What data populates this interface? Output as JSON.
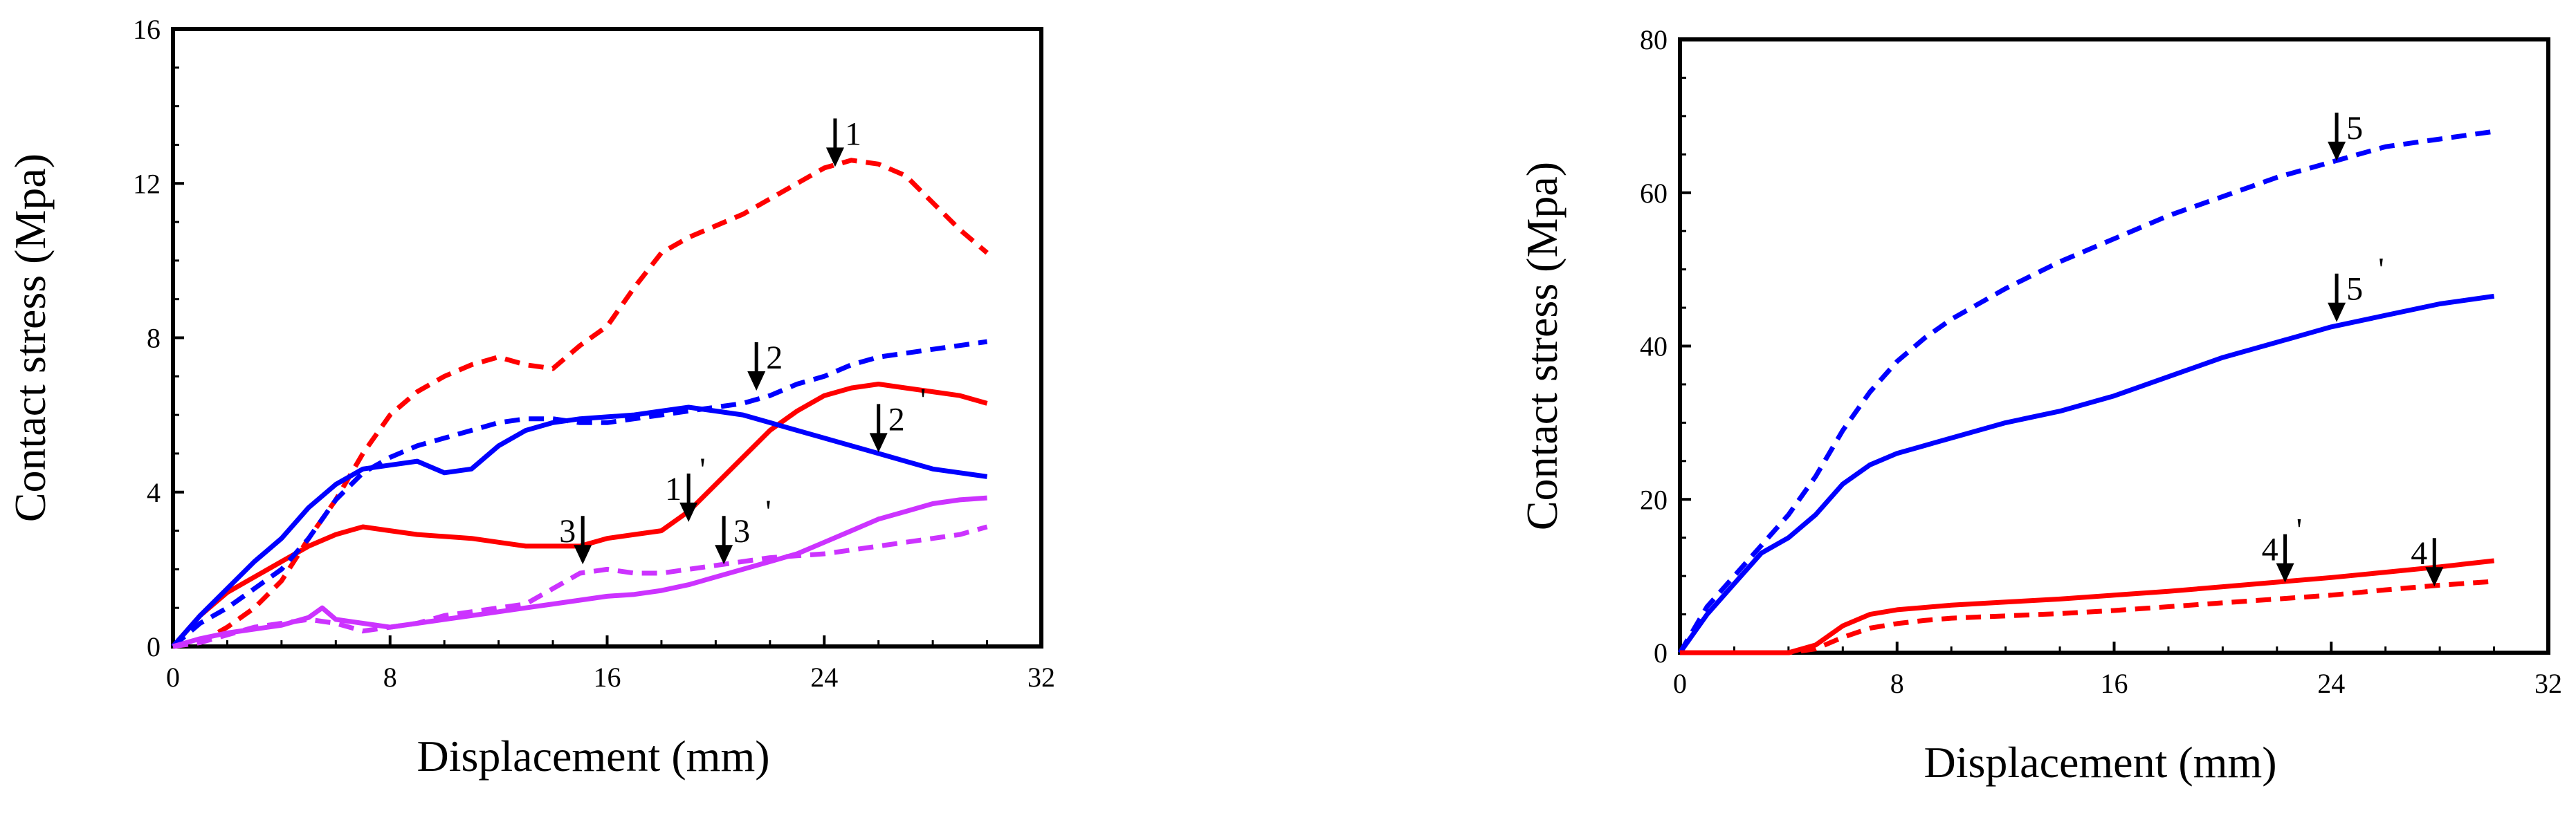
{
  "colors": {
    "red": "#ff0000",
    "blue": "#0000ff",
    "magenta": "#cc33ff",
    "black": "#000000"
  },
  "chart_data": [
    {
      "type": "line",
      "title": "",
      "xlabel": "Displacement (mm)",
      "ylabel": "Contact stress (Mpa)",
      "xlim": [
        0,
        32
      ],
      "ylim": [
        0,
        16
      ],
      "xticks": [
        0,
        8,
        16,
        24,
        32
      ],
      "yticks": [
        0,
        4,
        8,
        12,
        16
      ],
      "xtick_labels": [
        "0",
        "8",
        "16",
        "24",
        "32"
      ],
      "ytick_labels": [
        "0",
        "4",
        "8",
        "12",
        "16"
      ],
      "grid": false,
      "series": [
        {
          "name": "1",
          "color": "red",
          "style": "dashed",
          "x": [
            0,
            1,
            1.5,
            2,
            3,
            4,
            5,
            6,
            7,
            8,
            9,
            10,
            11,
            12,
            13,
            14,
            15,
            16,
            17,
            18,
            19,
            20,
            21,
            22,
            23,
            24,
            25,
            26,
            27,
            28,
            29,
            30
          ],
          "y": [
            0,
            0.1,
            0.3,
            0.5,
            1.0,
            1.7,
            2.8,
            3.8,
            5.0,
            6.0,
            6.6,
            7.0,
            7.3,
            7.5,
            7.3,
            7.2,
            7.8,
            8.3,
            9.3,
            10.2,
            10.6,
            10.9,
            11.2,
            11.6,
            12.0,
            12.4,
            12.6,
            12.5,
            12.2,
            11.5,
            10.8,
            10.2
          ]
        },
        {
          "name": "1'",
          "color": "red",
          "style": "solid",
          "x": [
            0,
            1,
            1.5,
            2,
            3,
            4,
            5,
            6,
            7,
            8,
            9,
            10,
            11,
            12,
            13,
            14,
            15,
            16,
            17,
            18,
            19,
            20,
            21,
            22,
            23,
            24,
            25,
            26,
            27,
            28,
            29,
            30
          ],
          "y": [
            0,
            0.8,
            1.1,
            1.4,
            1.8,
            2.2,
            2.6,
            2.9,
            3.1,
            3.0,
            2.9,
            2.85,
            2.8,
            2.7,
            2.6,
            2.6,
            2.6,
            2.8,
            2.9,
            3.0,
            3.5,
            4.2,
            4.9,
            5.6,
            6.1,
            6.5,
            6.7,
            6.8,
            6.7,
            6.6,
            6.5,
            6.3
          ]
        },
        {
          "name": "2",
          "color": "blue",
          "style": "dashed",
          "x": [
            0,
            1,
            2,
            3,
            4,
            5,
            6,
            7,
            8,
            9,
            10,
            11,
            12,
            13,
            14,
            15,
            16,
            17,
            18,
            19,
            20,
            21,
            22,
            23,
            24,
            25,
            26,
            27,
            28,
            29,
            30
          ],
          "y": [
            0,
            0.6,
            1.0,
            1.5,
            2.0,
            2.8,
            3.8,
            4.5,
            4.9,
            5.2,
            5.4,
            5.6,
            5.8,
            5.9,
            5.9,
            5.8,
            5.8,
            5.9,
            6.0,
            6.1,
            6.2,
            6.3,
            6.5,
            6.8,
            7.0,
            7.3,
            7.5,
            7.6,
            7.7,
            7.8,
            7.9
          ]
        },
        {
          "name": "2'",
          "color": "blue",
          "style": "solid",
          "x": [
            0,
            1,
            2,
            3,
            4,
            5,
            6,
            7,
            8,
            9,
            10,
            11,
            12,
            13,
            14,
            15,
            16,
            17,
            18,
            19,
            20,
            21,
            22,
            23,
            24,
            25,
            26,
            27,
            28,
            29,
            30
          ],
          "y": [
            0,
            0.8,
            1.5,
            2.2,
            2.8,
            3.6,
            4.2,
            4.6,
            4.7,
            4.8,
            4.5,
            4.6,
            5.2,
            5.6,
            5.8,
            5.9,
            5.95,
            6.0,
            6.1,
            6.2,
            6.1,
            6.0,
            5.8,
            5.6,
            5.4,
            5.2,
            5.0,
            4.8,
            4.6,
            4.5,
            4.4
          ]
        },
        {
          "name": "3",
          "color": "magenta",
          "style": "dashed",
          "x": [
            0,
            1,
            2,
            3,
            4,
            5,
            6,
            7,
            8,
            9,
            10,
            11,
            12,
            13,
            14,
            15,
            16,
            17,
            18,
            19,
            20,
            21,
            22,
            23,
            24,
            25,
            26,
            27,
            28,
            29,
            30
          ],
          "y": [
            0,
            0.1,
            0.3,
            0.5,
            0.6,
            0.7,
            0.6,
            0.4,
            0.5,
            0.6,
            0.8,
            0.9,
            1.0,
            1.1,
            1.5,
            1.9,
            2.0,
            1.9,
            1.9,
            2.0,
            2.1,
            2.2,
            2.3,
            2.35,
            2.4,
            2.5,
            2.6,
            2.7,
            2.8,
            2.9,
            3.1
          ]
        },
        {
          "name": "3'",
          "color": "magenta",
          "style": "solid",
          "x": [
            0,
            1,
            2,
            3,
            4,
            5,
            5.5,
            6,
            7,
            8,
            9,
            10,
            11,
            12,
            13,
            14,
            15,
            16,
            17,
            18,
            19,
            20,
            21,
            22,
            23,
            24,
            25,
            26,
            27,
            28,
            29,
            30
          ],
          "y": [
            0,
            0.2,
            0.35,
            0.45,
            0.55,
            0.75,
            1.0,
            0.7,
            0.6,
            0.5,
            0.6,
            0.7,
            0.8,
            0.9,
            1.0,
            1.1,
            1.2,
            1.3,
            1.35,
            1.45,
            1.6,
            1.8,
            2.0,
            2.2,
            2.4,
            2.7,
            3.0,
            3.3,
            3.5,
            3.7,
            3.8,
            3.85
          ]
        }
      ],
      "annotations": [
        {
          "text": "1",
          "x": 24.4,
          "y": 12.5,
          "arrow": true
        },
        {
          "text": "1'",
          "x": 19.0,
          "y": 3.3,
          "arrow": true,
          "text_side": "left"
        },
        {
          "text": "2",
          "x": 21.5,
          "y": 6.7,
          "arrow": true
        },
        {
          "text": "2'",
          "x": 26.0,
          "y": 5.1,
          "arrow": true
        },
        {
          "text": "3",
          "x": 15.1,
          "y": 2.2,
          "arrow": true,
          "text_side": "left"
        },
        {
          "text": "3'",
          "x": 20.3,
          "y": 2.2,
          "arrow": true
        }
      ]
    },
    {
      "type": "line",
      "title": "",
      "xlabel": "Displacement (mm)",
      "ylabel": "Contact stress (Mpa)",
      "xlim": [
        0,
        32
      ],
      "ylim": [
        0,
        80
      ],
      "xticks": [
        0,
        8,
        16,
        24,
        32
      ],
      "yticks": [
        0,
        20,
        40,
        60,
        80
      ],
      "xtick_labels": [
        "0",
        "8",
        "16",
        "24",
        "32"
      ],
      "ytick_labels": [
        "0",
        "20",
        "40",
        "60",
        "80"
      ],
      "grid": false,
      "series": [
        {
          "name": "5",
          "color": "blue",
          "style": "dashed",
          "x": [
            0,
            1,
            2,
            3,
            4,
            5,
            6,
            7,
            8,
            9,
            10,
            12,
            14,
            16,
            18,
            20,
            22,
            24,
            26,
            28,
            30
          ],
          "y": [
            0,
            6,
            10,
            14,
            18,
            23,
            29,
            34,
            38,
            41,
            43.5,
            47.5,
            51,
            54,
            57,
            59.5,
            62,
            64,
            66,
            67,
            68
          ]
        },
        {
          "name": "5'",
          "color": "blue",
          "style": "solid",
          "x": [
            0,
            1,
            2,
            3,
            4,
            5,
            6,
            7,
            8,
            9,
            10,
            12,
            14,
            16,
            18,
            20,
            22,
            24,
            26,
            28,
            30
          ],
          "y": [
            0,
            5,
            9,
            13,
            15,
            18,
            22,
            24.5,
            26,
            27,
            28,
            30,
            31.5,
            33.5,
            36,
            38.5,
            40.5,
            42.5,
            44,
            45.5,
            46.5
          ]
        },
        {
          "name": "4",
          "color": "red",
          "style": "dashed",
          "x": [
            0,
            4,
            5,
            6,
            7,
            8,
            9,
            10,
            12,
            14,
            16,
            18,
            20,
            22,
            24,
            26,
            28,
            30
          ],
          "y": [
            0,
            0,
            0.5,
            2,
            3.2,
            3.8,
            4.2,
            4.5,
            4.8,
            5.1,
            5.5,
            6.0,
            6.5,
            7.0,
            7.5,
            8.2,
            8.8,
            9.3
          ]
        },
        {
          "name": "4'",
          "color": "red",
          "style": "solid",
          "x": [
            0,
            4,
            5,
            6,
            7,
            8,
            9,
            10,
            12,
            14,
            16,
            18,
            20,
            22,
            24,
            26,
            28,
            30
          ],
          "y": [
            0,
            0,
            1.0,
            3.5,
            5.0,
            5.6,
            5.9,
            6.2,
            6.6,
            7.0,
            7.5,
            8.0,
            8.6,
            9.2,
            9.8,
            10.5,
            11.2,
            12.0
          ]
        }
      ],
      "annotations": [
        {
          "text": "5",
          "x": 24.2,
          "y": 64.5,
          "arrow": true
        },
        {
          "text": "5'",
          "x": 24.2,
          "y": 43.5,
          "arrow": true
        },
        {
          "text": "4'",
          "x": 22.3,
          "y": 9.5,
          "arrow": true,
          "text_side": "left"
        },
        {
          "text": "4",
          "x": 27.8,
          "y": 9.0,
          "arrow": true,
          "text_side": "left"
        }
      ]
    }
  ]
}
